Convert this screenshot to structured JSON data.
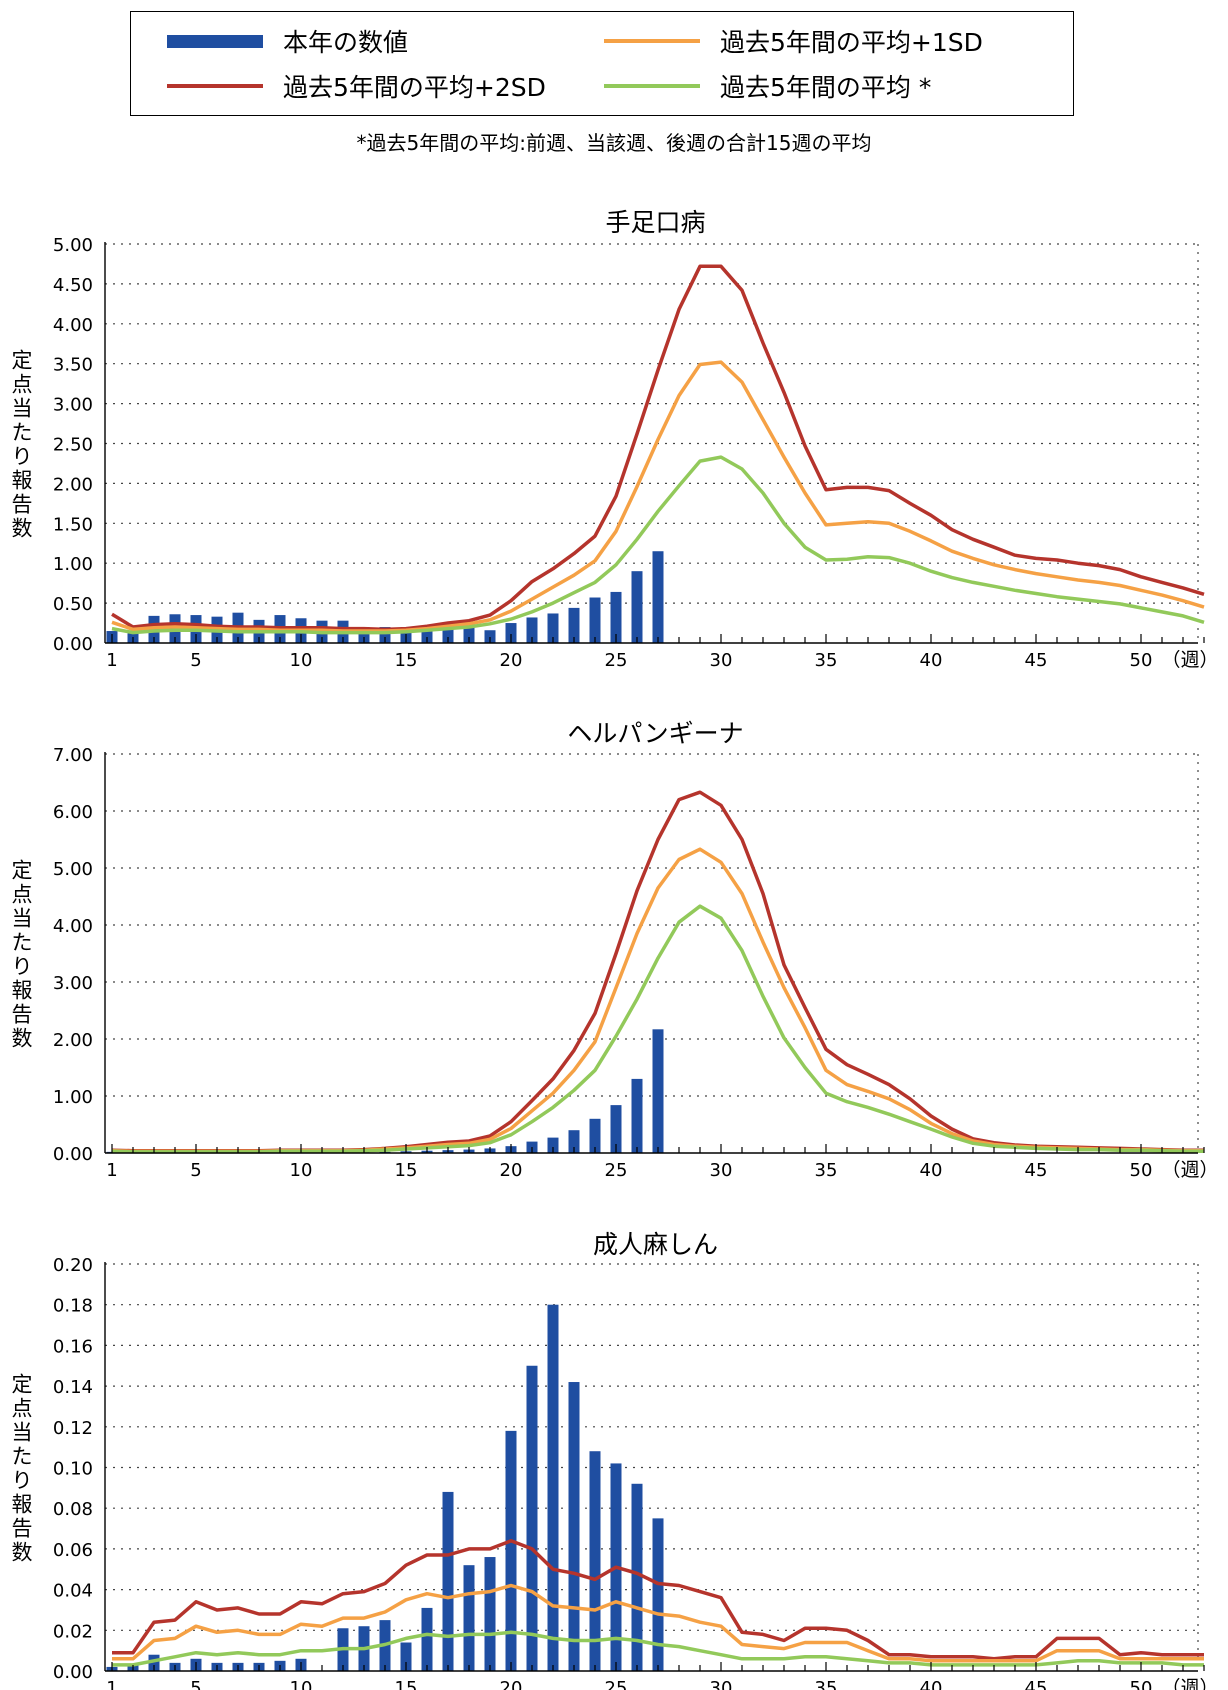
{
  "legend": {
    "bar": "本年の数値",
    "sd1": "過去5年間の平均+1SD",
    "sd2": "過去5年間の平均+2SD",
    "avg": "過去5年間の平均 *"
  },
  "footnote": "*過去5年間の平均:前週、当該週、後週の合計15週の平均",
  "colors": {
    "bar": "#1f4ea1",
    "sd2": "#b5342c",
    "sd1": "#f5a145",
    "avg": "#92c95a",
    "grid": "#555555"
  },
  "chart_data": [
    {
      "type": "bar",
      "title": "手足口病",
      "ylabel": "定点当たり報告数",
      "xlabel": "（週）",
      "ylim": [
        0,
        5
      ],
      "y_ticks": [
        "0.00",
        "0.50",
        "1.00",
        "1.50",
        "2.00",
        "2.50",
        "3.00",
        "3.50",
        "4.00",
        "4.50",
        "5.00"
      ],
      "x_ticks": [
        1,
        5,
        10,
        15,
        20,
        25,
        30,
        35,
        40,
        45,
        50
      ],
      "grid": true,
      "series": [
        {
          "name": "本年の数値",
          "kind": "bar",
          "color": "#1f4ea1",
          "values": [
            0.15,
            0.12,
            0.34,
            0.36,
            0.35,
            0.33,
            0.38,
            0.29,
            0.35,
            0.31,
            0.28,
            0.28,
            0.2,
            0.2,
            0.2,
            0.22,
            0.22,
            0.23,
            0.16,
            0.25,
            0.32,
            0.37,
            0.44,
            0.57,
            0.64,
            0.9,
            1.15
          ]
        },
        {
          "name": "過去5年間の平均+2SD",
          "kind": "line",
          "color": "#b5342c",
          "values": [
            0.36,
            0.2,
            0.23,
            0.24,
            0.23,
            0.21,
            0.2,
            0.2,
            0.19,
            0.19,
            0.19,
            0.18,
            0.18,
            0.17,
            0.18,
            0.21,
            0.25,
            0.28,
            0.35,
            0.53,
            0.77,
            0.93,
            1.12,
            1.34,
            1.84,
            2.62,
            3.42,
            4.18,
            4.72,
            4.72,
            4.42,
            3.76,
            3.14,
            2.47,
            1.92,
            1.95,
            1.95,
            1.91,
            1.75,
            1.6,
            1.42,
            1.3,
            1.2,
            1.1,
            1.06,
            1.04,
            1.0,
            0.97,
            0.92,
            0.83,
            0.76,
            0.69,
            0.61
          ]
        },
        {
          "name": "過去5年間の平均+1SD",
          "kind": "line",
          "color": "#f5a145",
          "values": [
            0.26,
            0.17,
            0.19,
            0.2,
            0.19,
            0.18,
            0.17,
            0.17,
            0.16,
            0.16,
            0.16,
            0.15,
            0.15,
            0.15,
            0.16,
            0.18,
            0.21,
            0.24,
            0.29,
            0.4,
            0.55,
            0.7,
            0.85,
            1.03,
            1.4,
            1.96,
            2.55,
            3.1,
            3.49,
            3.52,
            3.27,
            2.8,
            2.33,
            1.88,
            1.48,
            1.5,
            1.52,
            1.5,
            1.4,
            1.28,
            1.15,
            1.06,
            0.98,
            0.92,
            0.87,
            0.83,
            0.79,
            0.76,
            0.72,
            0.66,
            0.6,
            0.53,
            0.45
          ]
        },
        {
          "name": "過去5年間の平均 *",
          "kind": "line",
          "color": "#92c95a",
          "values": [
            0.18,
            0.13,
            0.15,
            0.16,
            0.16,
            0.15,
            0.14,
            0.14,
            0.14,
            0.14,
            0.13,
            0.13,
            0.13,
            0.13,
            0.14,
            0.16,
            0.18,
            0.2,
            0.24,
            0.3,
            0.39,
            0.5,
            0.63,
            0.76,
            0.98,
            1.3,
            1.65,
            1.97,
            2.28,
            2.33,
            2.18,
            1.88,
            1.5,
            1.2,
            1.04,
            1.05,
            1.08,
            1.07,
            1.0,
            0.9,
            0.82,
            0.76,
            0.71,
            0.66,
            0.62,
            0.58,
            0.55,
            0.52,
            0.49,
            0.44,
            0.39,
            0.34,
            0.26
          ]
        }
      ]
    },
    {
      "type": "bar",
      "title": "ヘルパンギーナ",
      "ylabel": "定点当たり報告数",
      "xlabel": "（週）",
      "ylim": [
        0,
        7
      ],
      "y_ticks": [
        "0.00",
        "1.00",
        "2.00",
        "3.00",
        "4.00",
        "5.00",
        "6.00",
        "7.00"
      ],
      "x_ticks": [
        1,
        5,
        10,
        15,
        20,
        25,
        30,
        35,
        40,
        45,
        50
      ],
      "grid": true,
      "series": [
        {
          "name": "本年の数値",
          "kind": "bar",
          "color": "#1f4ea1",
          "values": [
            0.02,
            0.01,
            0.01,
            0.01,
            0.01,
            0.01,
            0.01,
            0.01,
            0.01,
            0.01,
            0.01,
            0.01,
            0.02,
            0.02,
            0.03,
            0.04,
            0.05,
            0.06,
            0.08,
            0.12,
            0.2,
            0.27,
            0.4,
            0.6,
            0.84,
            1.3,
            2.17
          ]
        },
        {
          "name": "過去5年間の平均+2SD",
          "kind": "line",
          "color": "#b5342c",
          "values": [
            0.05,
            0.04,
            0.04,
            0.04,
            0.04,
            0.04,
            0.04,
            0.04,
            0.05,
            0.05,
            0.05,
            0.05,
            0.06,
            0.08,
            0.11,
            0.15,
            0.19,
            0.21,
            0.3,
            0.55,
            0.92,
            1.3,
            1.8,
            2.45,
            3.5,
            4.6,
            5.5,
            6.2,
            6.33,
            6.1,
            5.5,
            4.55,
            3.3,
            2.55,
            1.82,
            1.55,
            1.38,
            1.2,
            0.95,
            0.65,
            0.42,
            0.25,
            0.18,
            0.14,
            0.12,
            0.11,
            0.1,
            0.09,
            0.08,
            0.07,
            0.06,
            0.05,
            0.05
          ]
        },
        {
          "name": "過去5年間の平均+1SD",
          "kind": "line",
          "color": "#f5a145",
          "values": [
            0.04,
            0.03,
            0.03,
            0.03,
            0.03,
            0.03,
            0.03,
            0.03,
            0.04,
            0.04,
            0.04,
            0.04,
            0.05,
            0.07,
            0.09,
            0.12,
            0.15,
            0.17,
            0.24,
            0.43,
            0.74,
            1.05,
            1.45,
            1.95,
            2.9,
            3.85,
            4.65,
            5.15,
            5.33,
            5.1,
            4.55,
            3.7,
            2.9,
            2.2,
            1.45,
            1.2,
            1.08,
            0.95,
            0.76,
            0.52,
            0.34,
            0.21,
            0.15,
            0.12,
            0.1,
            0.09,
            0.08,
            0.07,
            0.06,
            0.06,
            0.05,
            0.04,
            0.04
          ]
        },
        {
          "name": "過去5年間の平均 *",
          "kind": "line",
          "color": "#92c95a",
          "values": [
            0.03,
            0.02,
            0.02,
            0.02,
            0.02,
            0.02,
            0.02,
            0.02,
            0.03,
            0.03,
            0.03,
            0.03,
            0.04,
            0.05,
            0.07,
            0.09,
            0.11,
            0.13,
            0.18,
            0.32,
            0.55,
            0.8,
            1.1,
            1.45,
            2.05,
            2.7,
            3.42,
            4.05,
            4.33,
            4.12,
            3.55,
            2.75,
            2.02,
            1.5,
            1.05,
            0.9,
            0.8,
            0.68,
            0.55,
            0.42,
            0.28,
            0.17,
            0.12,
            0.1,
            0.08,
            0.07,
            0.06,
            0.06,
            0.05,
            0.05,
            0.04,
            0.03,
            0.03
          ]
        }
      ]
    },
    {
      "type": "bar",
      "title": "成人麻しん",
      "ylabel": "定点当たり報告数",
      "xlabel": "（週）",
      "ylim": [
        0,
        0.2
      ],
      "y_ticks": [
        "0.00",
        "0.02",
        "0.04",
        "0.06",
        "0.08",
        "0.10",
        "0.12",
        "0.14",
        "0.16",
        "0.18",
        "0.20"
      ],
      "x_ticks": [
        1,
        5,
        10,
        15,
        20,
        25,
        30,
        35,
        40,
        45,
        50
      ],
      "grid": true,
      "series": [
        {
          "name": "本年の数値",
          "kind": "bar",
          "color": "#1f4ea1",
          "values": [
            0.002,
            0.003,
            0.008,
            0.004,
            0.006,
            0.004,
            0.004,
            0.004,
            0.005,
            0.006,
            0.0,
            0.021,
            0.022,
            0.025,
            0.014,
            0.031,
            0.088,
            0.052,
            0.056,
            0.118,
            0.15,
            0.18,
            0.142,
            0.108,
            0.102,
            0.092,
            0.075
          ]
        },
        {
          "name": "過去5年間の平均+2SD",
          "kind": "line",
          "color": "#b5342c",
          "values": [
            0.009,
            0.009,
            0.024,
            0.025,
            0.034,
            0.03,
            0.031,
            0.028,
            0.028,
            0.034,
            0.033,
            0.038,
            0.039,
            0.043,
            0.052,
            0.057,
            0.057,
            0.06,
            0.06,
            0.064,
            0.06,
            0.05,
            0.048,
            0.045,
            0.051,
            0.048,
            0.043,
            0.042,
            0.039,
            0.036,
            0.019,
            0.018,
            0.015,
            0.021,
            0.021,
            0.02,
            0.015,
            0.008,
            0.008,
            0.007,
            0.007,
            0.007,
            0.006,
            0.007,
            0.007,
            0.016,
            0.016,
            0.016,
            0.008,
            0.009,
            0.008,
            0.008,
            0.008
          ]
        },
        {
          "name": "過去5年間の平均+1SD",
          "kind": "line",
          "color": "#f5a145",
          "values": [
            0.006,
            0.006,
            0.015,
            0.016,
            0.022,
            0.019,
            0.02,
            0.018,
            0.018,
            0.023,
            0.022,
            0.026,
            0.026,
            0.029,
            0.035,
            0.038,
            0.036,
            0.038,
            0.039,
            0.042,
            0.039,
            0.032,
            0.031,
            0.03,
            0.034,
            0.031,
            0.028,
            0.027,
            0.024,
            0.022,
            0.013,
            0.012,
            0.011,
            0.014,
            0.014,
            0.014,
            0.01,
            0.006,
            0.006,
            0.005,
            0.005,
            0.005,
            0.005,
            0.005,
            0.005,
            0.01,
            0.01,
            0.01,
            0.006,
            0.006,
            0.006,
            0.006,
            0.006
          ]
        },
        {
          "name": "過去5年間の平均 *",
          "kind": "line",
          "color": "#92c95a",
          "values": [
            0.003,
            0.003,
            0.005,
            0.007,
            0.009,
            0.008,
            0.009,
            0.008,
            0.008,
            0.01,
            0.01,
            0.011,
            0.011,
            0.013,
            0.016,
            0.018,
            0.017,
            0.018,
            0.018,
            0.019,
            0.018,
            0.016,
            0.015,
            0.015,
            0.016,
            0.015,
            0.013,
            0.012,
            0.01,
            0.008,
            0.006,
            0.006,
            0.006,
            0.007,
            0.007,
            0.006,
            0.005,
            0.004,
            0.004,
            0.003,
            0.003,
            0.003,
            0.003,
            0.003,
            0.003,
            0.004,
            0.005,
            0.005,
            0.004,
            0.004,
            0.004,
            0.003,
            0.003
          ]
        }
      ]
    }
  ]
}
